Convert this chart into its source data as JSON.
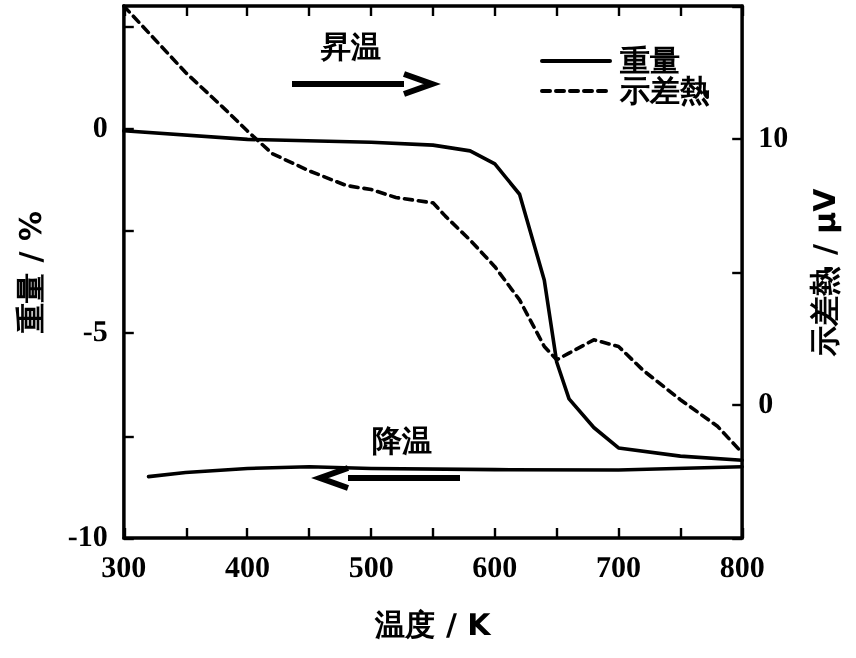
{
  "chart_data": {
    "type": "line",
    "xlabel": "温度 / K",
    "ylabel": "重量 / %",
    "y2label": "示差熱 / μV",
    "xlim": [
      300,
      800
    ],
    "xticks": [
      300,
      {
        "value": 350,
        "label": null
      },
      400,
      {
        "value": 450,
        "label": null
      },
      500,
      {
        "value": 550,
        "label": null
      },
      600,
      {
        "value": 650,
        "label": null
      },
      700,
      {
        "value": 750,
        "label": null
      },
      800
    ],
    "ylim": [
      -10,
      3
    ],
    "yticks": [
      -10,
      {
        "value": -7.5,
        "label": null
      },
      -5,
      {
        "value": -2.5,
        "label": null
      },
      0,
      {
        "value": 2.5,
        "label": null
      }
    ],
    "y2lim": [
      -5,
      15
    ],
    "y2ticks": [
      {
        "value": -5,
        "label": null
      },
      0,
      {
        "value": 5,
        "label": null
      },
      10,
      {
        "value": 15,
        "label": null
      }
    ],
    "legend": "top right",
    "grid": false,
    "series": [
      {
        "name": "重量",
        "color": "#000000",
        "line_style": "solid",
        "x": [
          300,
          400,
          500,
          550,
          580,
          600,
          620,
          640,
          650,
          660,
          680,
          700,
          750,
          800
        ],
        "values": [
          -0.05,
          -0.26,
          -0.33,
          -0.4,
          -0.54,
          -0.86,
          -1.6,
          -3.7,
          -5.7,
          -6.6,
          -7.3,
          -7.8,
          -8.0,
          -8.1
        ]
      },
      {
        "color": "#000000",
        "line_style": "solid",
        "x": [
          800,
          700,
          600,
          500,
          450,
          400,
          350,
          320
        ],
        "values": [
          -8.26,
          -8.34,
          -8.33,
          -8.3,
          -8.26,
          -8.3,
          -8.4,
          -8.5
        ]
      },
      {
        "name": "示差熱",
        "color": "#000000",
        "line_style": "dashed",
        "axis": "y2",
        "x": [
          300,
          320,
          350,
          380,
          400,
          420,
          450,
          480,
          500,
          520,
          550,
          560,
          580,
          600,
          620,
          640,
          650,
          660,
          680,
          700,
          720,
          750,
          780,
          800
        ],
        "values": [
          15,
          14,
          12.5,
          11.2,
          10.3,
          9.45,
          8.8,
          8.25,
          8.1,
          7.8,
          7.6,
          7.1,
          6.2,
          5.2,
          3.95,
          2.2,
          1.7,
          1.95,
          2.45,
          2.2,
          1.3,
          0.2,
          -0.8,
          -1.8
        ]
      }
    ],
    "annotations": [
      "昇温",
      "降温"
    ]
  }
}
